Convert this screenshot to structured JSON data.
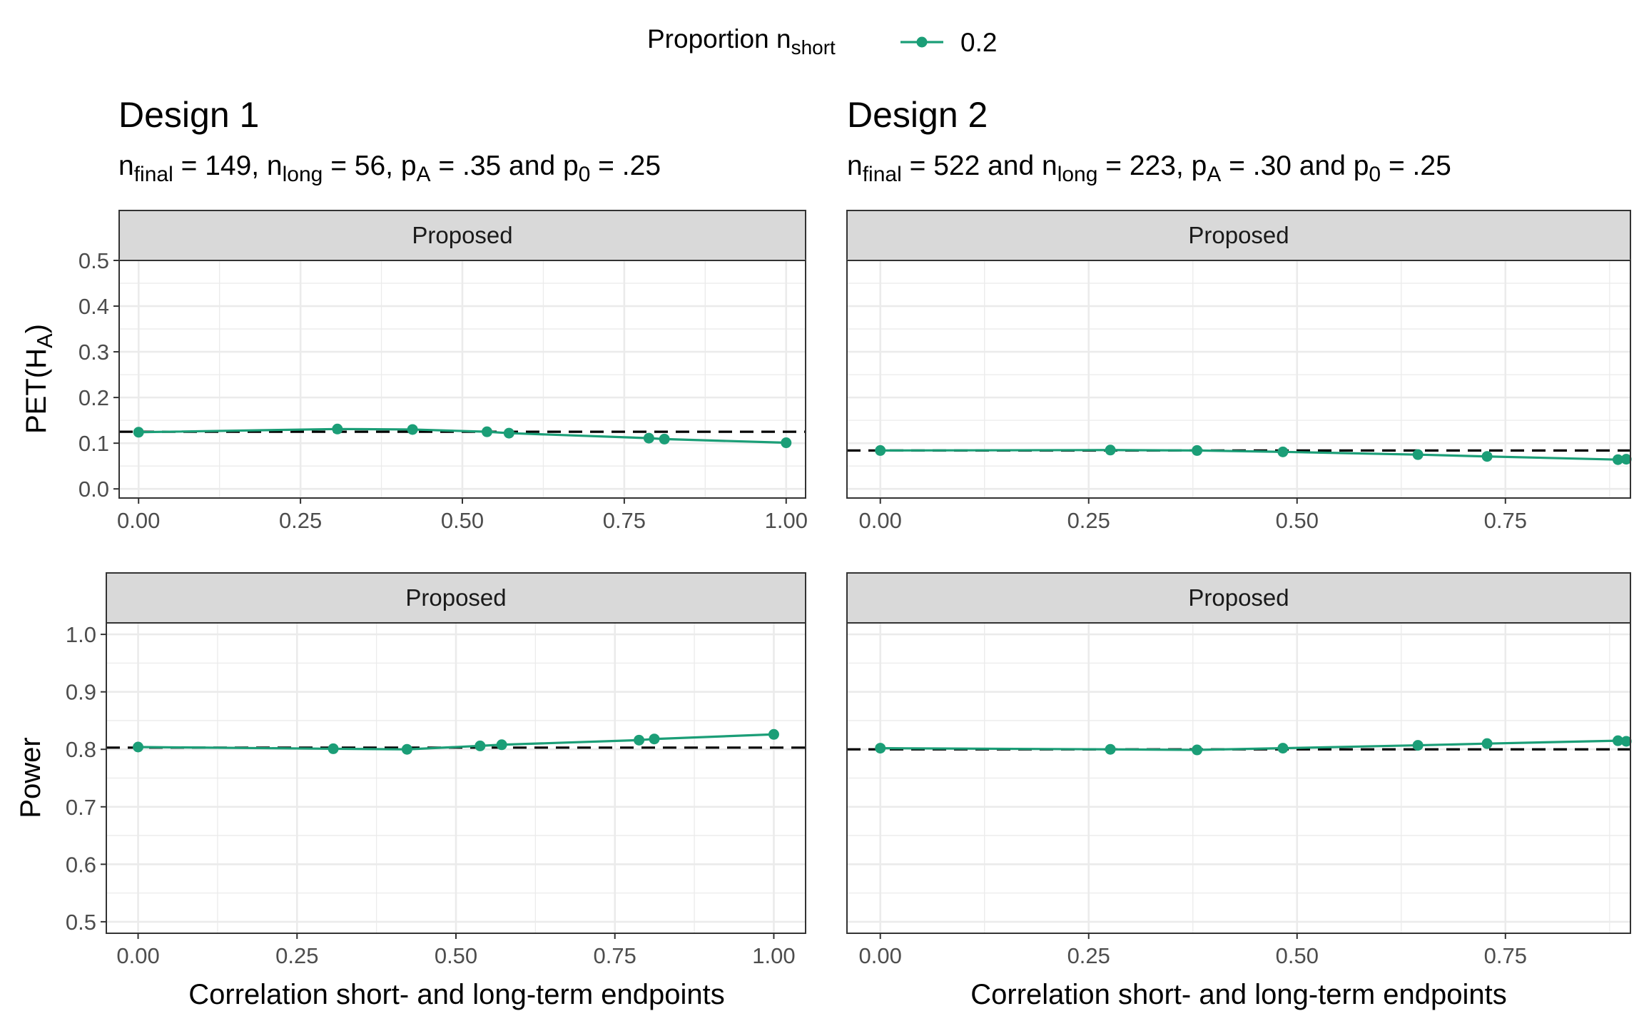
{
  "legend": {
    "title_main": "Proportion n",
    "title_sub": "short",
    "entries": [
      "0.2"
    ]
  },
  "designs": [
    {
      "title": "Design 1",
      "subtitle_parts": [
        {
          "t": "n"
        },
        {
          "t": "final",
          "sub": true
        },
        {
          "t": " = 149, n"
        },
        {
          "t": "long",
          "sub": true
        },
        {
          "t": " = 56, p"
        },
        {
          "t": "A",
          "sub": true
        },
        {
          "t": " = .35 and p"
        },
        {
          "t": "0",
          "sub": true
        },
        {
          "t": " = .25"
        }
      ]
    },
    {
      "title": "Design 2",
      "subtitle_parts": [
        {
          "t": "n"
        },
        {
          "t": "final",
          "sub": true
        },
        {
          "t": " = 522 and n"
        },
        {
          "t": "long",
          "sub": true
        },
        {
          "t": " = 223, p"
        },
        {
          "t": "A",
          "sub": true
        },
        {
          "t": " = .30 and p"
        },
        {
          "t": "0",
          "sub": true
        },
        {
          "t": " = .25"
        }
      ]
    }
  ],
  "strip_label": "Proposed",
  "xlabel": "Correlation short- and long-term endpoints",
  "ylabels": {
    "pet": {
      "main": "PET(H",
      "sub": "A",
      "end": ")"
    },
    "power": "Power"
  },
  "colors": {
    "series": "#1b9e77",
    "reference": "#000000"
  },
  "chart_data": [
    {
      "type": "line",
      "design": "Design 1",
      "row": "pet",
      "xlim": [
        -0.03,
        1.03
      ],
      "ylim": [
        -0.02,
        0.5
      ],
      "xticks": [
        "0.00",
        "0.25",
        "0.50",
        "0.75",
        "1.00"
      ],
      "yticks": [
        "0.0",
        "0.1",
        "0.2",
        "0.3",
        "0.4",
        "0.5"
      ],
      "reference_y": 0.125,
      "series": [
        {
          "name": "0.2",
          "x": [
            0.0,
            0.307,
            0.423,
            0.538,
            0.572,
            0.788,
            0.812,
            1.0
          ],
          "y": [
            0.124,
            0.131,
            0.13,
            0.125,
            0.122,
            0.111,
            0.109,
            0.101
          ]
        }
      ]
    },
    {
      "type": "line",
      "design": "Design 2",
      "row": "pet",
      "xlim": [
        -0.04,
        0.9
      ],
      "ylim": [
        -0.02,
        0.5
      ],
      "xticks": [
        "0.00",
        "0.25",
        "0.50",
        "0.75"
      ],
      "yticks": [],
      "reference_y": 0.084,
      "series": [
        {
          "name": "0.2",
          "x": [
            0.0,
            0.276,
            0.38,
            0.483,
            0.645,
            0.728,
            0.885,
            0.895
          ],
          "y": [
            0.084,
            0.085,
            0.084,
            0.081,
            0.075,
            0.071,
            0.064,
            0.065
          ]
        }
      ]
    },
    {
      "type": "line",
      "design": "Design 1",
      "row": "power",
      "xlim": [
        -0.05,
        1.05
      ],
      "ylim": [
        0.48,
        1.02
      ],
      "xticks": [
        "0.00",
        "0.25",
        "0.50",
        "0.75",
        "1.00"
      ],
      "yticks": [
        "0.5",
        "0.6",
        "0.7",
        "0.8",
        "0.9",
        "1.0"
      ],
      "reference_y": 0.803,
      "series": [
        {
          "name": "0.2",
          "x": [
            0.0,
            0.307,
            0.423,
            0.538,
            0.572,
            0.788,
            0.812,
            1.0
          ],
          "y": [
            0.804,
            0.801,
            0.8,
            0.806,
            0.808,
            0.816,
            0.818,
            0.826
          ]
        }
      ]
    },
    {
      "type": "line",
      "design": "Design 2",
      "row": "power",
      "xlim": [
        -0.04,
        0.9
      ],
      "ylim": [
        0.48,
        1.02
      ],
      "xticks": [
        "0.00",
        "0.25",
        "0.50",
        "0.75"
      ],
      "yticks": [],
      "reference_y": 0.8,
      "series": [
        {
          "name": "0.2",
          "x": [
            0.0,
            0.276,
            0.38,
            0.483,
            0.645,
            0.728,
            0.885,
            0.895
          ],
          "y": [
            0.802,
            0.8,
            0.799,
            0.802,
            0.807,
            0.81,
            0.815,
            0.814
          ]
        }
      ]
    }
  ]
}
